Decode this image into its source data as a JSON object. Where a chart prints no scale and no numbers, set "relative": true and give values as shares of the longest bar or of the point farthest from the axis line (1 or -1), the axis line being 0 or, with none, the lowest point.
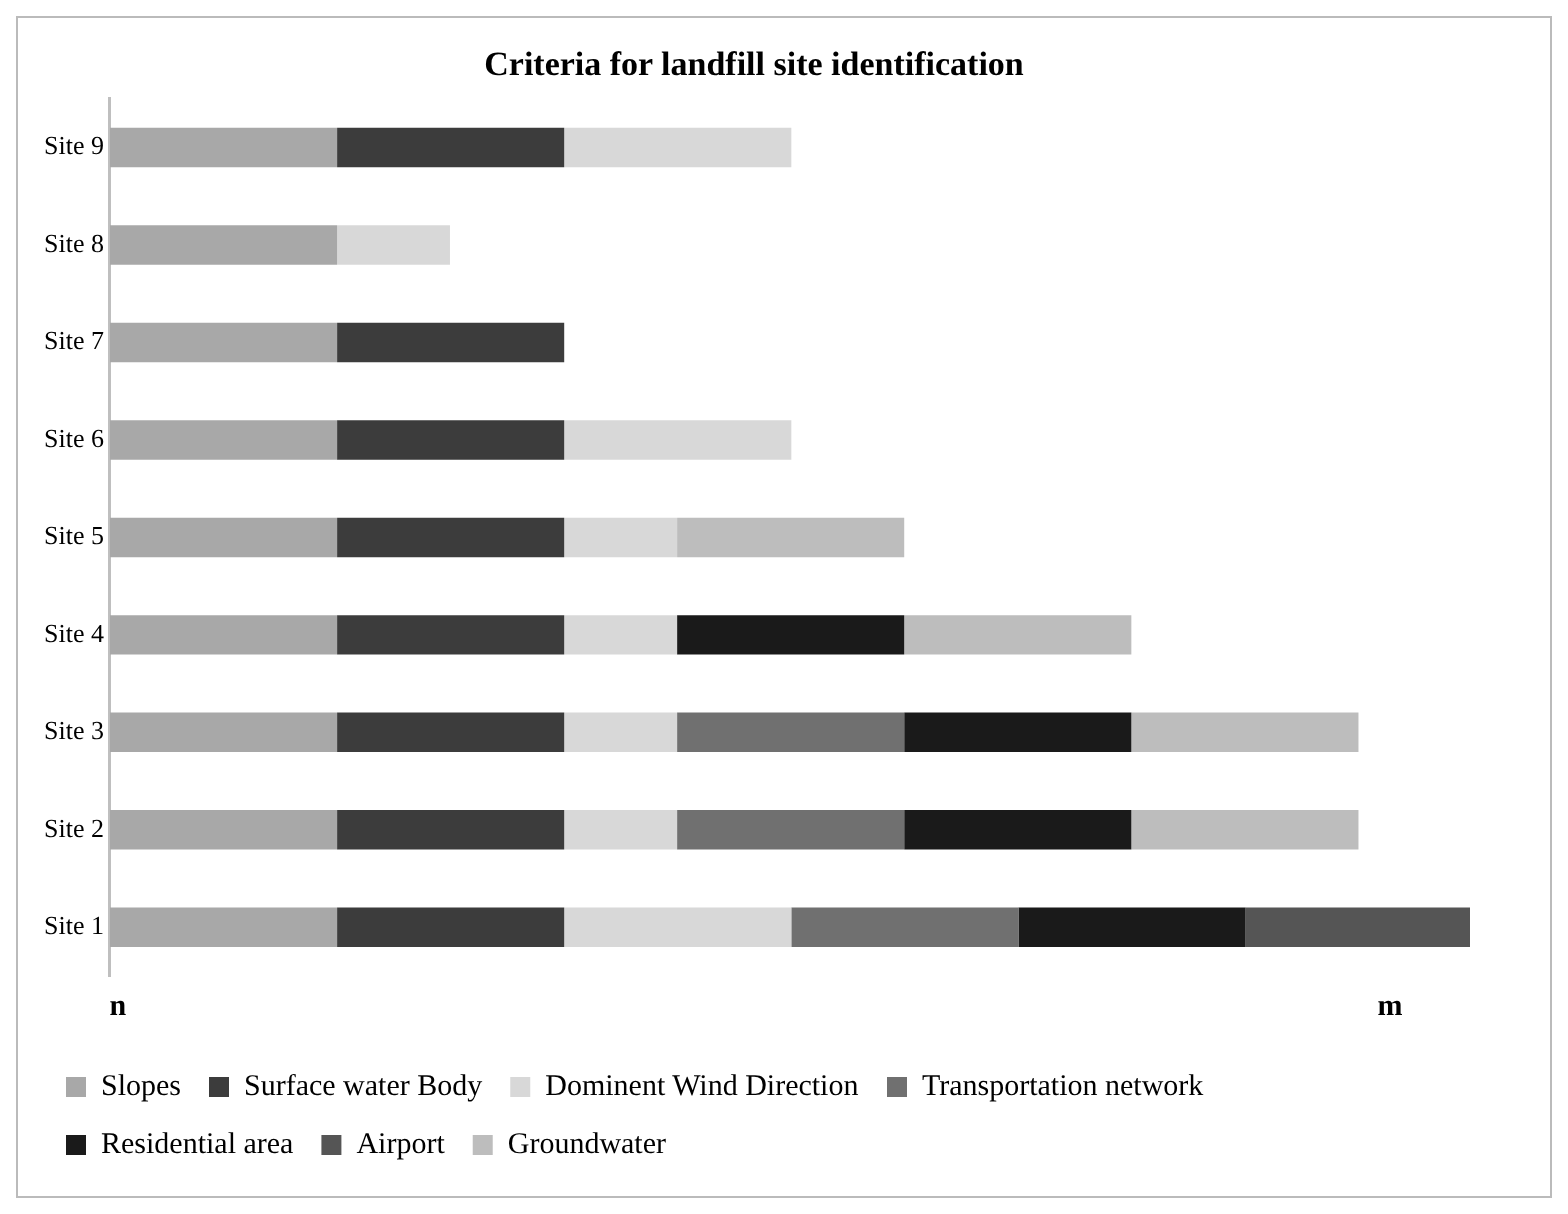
{
  "chart_data": {
    "type": "bar",
    "orientation": "horizontal",
    "stacked": true,
    "relative": true,
    "title": "Criteria for landfill site identification",
    "categories": [
      "Site 9",
      "Site 8",
      "Site 7",
      "Site 6",
      "Site 5",
      "Site 4",
      "Site 3",
      "Site 2",
      "Site 1"
    ],
    "series": [
      {
        "name": "Slopes",
        "color": "#a8a8a8",
        "values": [
          0.167,
          0.167,
          0.167,
          0.167,
          0.167,
          0.167,
          0.167,
          0.167,
          0.167
        ]
      },
      {
        "name": "Surface water Body",
        "color": "#3c3c3c",
        "values": [
          0.167,
          null,
          0.167,
          0.167,
          0.167,
          0.167,
          0.167,
          0.167,
          0.167
        ]
      },
      {
        "name": "Dominent Wind Direction",
        "color": "#d8d8d8",
        "values": [
          0.167,
          0.083,
          null,
          0.167,
          0.083,
          0.083,
          0.083,
          0.083,
          0.167
        ]
      },
      {
        "name": "Transportation network",
        "color": "#707070",
        "values": [
          null,
          null,
          null,
          null,
          null,
          null,
          0.167,
          0.167,
          0.167
        ]
      },
      {
        "name": "Residential area",
        "color": "#1a1a1a",
        "values": [
          null,
          null,
          null,
          null,
          null,
          0.167,
          0.167,
          0.167,
          0.167
        ]
      },
      {
        "name": "Airport",
        "color": "#555555",
        "values": [
          null,
          null,
          null,
          null,
          null,
          null,
          null,
          null,
          0.165
        ]
      },
      {
        "name": "Groundwater",
        "color": "#bdbdbd",
        "values": [
          null,
          null,
          null,
          null,
          0.167,
          0.167,
          0.167,
          0.167,
          null
        ]
      }
    ],
    "annotations": [
      "n",
      "m"
    ],
    "legend": "bottom"
  }
}
